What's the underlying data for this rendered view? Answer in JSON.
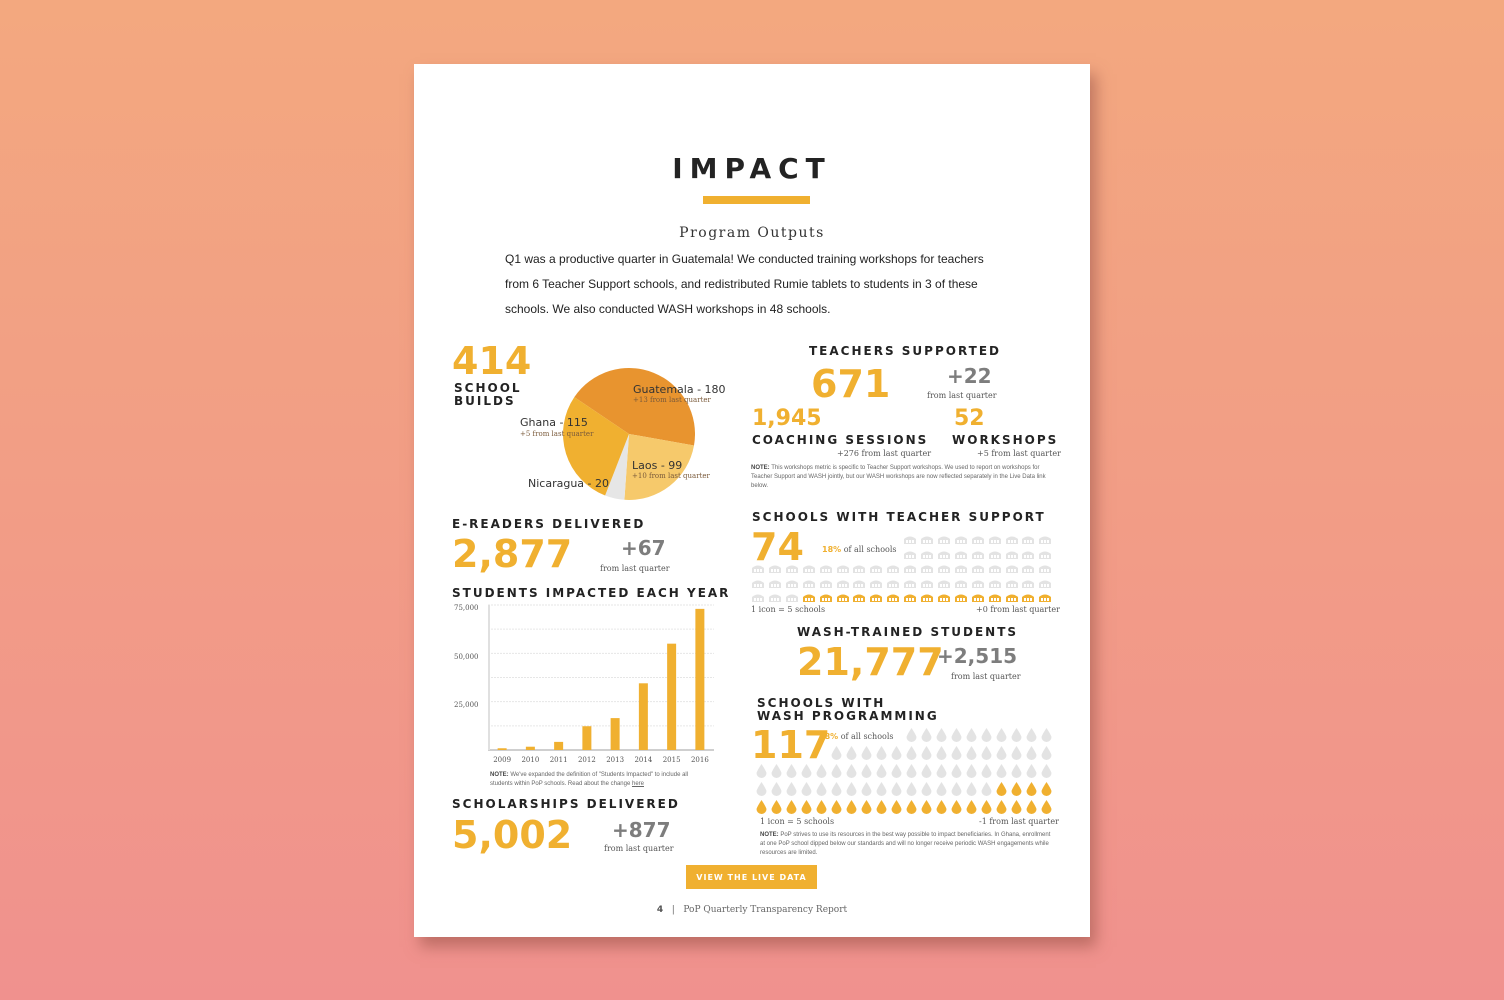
{
  "page": {
    "title": "IMPACT",
    "subtitle": "Program Outputs",
    "intro": "Q1 was a productive quarter in Guatemala! We conducted training workshops for teachers from 6 Teacher Support schools, and redistributed Rumie tablets to students in 3 of these schools. We also conducted WASH workshops in 48 schools.",
    "accent_color": "#f0b030"
  },
  "school_builds": {
    "value": "414",
    "label_line1": "SCHOOL",
    "label_line2": "BUILDS",
    "slices": [
      {
        "name": "Guatemala - 180",
        "value": 180,
        "delta": "+13 from last quarter",
        "color": "#e8942f"
      },
      {
        "name": "Laos - 99",
        "value": 99,
        "delta": "+10 from last quarter",
        "color": "#f6c96b"
      },
      {
        "name": "Nicaragua - 20",
        "value": 20,
        "delta": "",
        "color": "#e6e6e6"
      },
      {
        "name": "Ghana - 115",
        "value": 115,
        "delta": "+5 from last quarter",
        "color": "#f0b030"
      }
    ]
  },
  "teachers_supported": {
    "label": "TEACHERS SUPPORTED",
    "value": "671",
    "delta": "+22",
    "delta_label": "from last quarter",
    "coaching": {
      "value": "1,945",
      "label": "COACHING SESSIONS",
      "delta": "+276 from last quarter"
    },
    "workshops": {
      "value": "52",
      "label": "WORKSHOPS",
      "delta": "+5 from last quarter"
    },
    "note_label": "NOTE:",
    "note": "This workshops metric is specific to Teacher Support workshops. We used to report on workshops for Teacher Support and WASH jointly, but our WASH workshops are now reflected separately in the Live Data link below."
  },
  "ereaders": {
    "label": "E-READERS DELIVERED",
    "value": "2,877",
    "delta": "+67",
    "delta_label": "from last quarter"
  },
  "students_chart": {
    "label": "STUDENTS IMPACTED EACH YEAR",
    "note_label": "NOTE:",
    "note_text": "We've expanded the definition of \"Students Impacted\" to include all students within PoP schools. Read about the change ",
    "note_link": "here"
  },
  "chart_data": {
    "type": "bar",
    "title": "STUDENTS IMPACTED EACH YEAR",
    "categories": [
      "2009",
      "2010",
      "2011",
      "2012",
      "2013",
      "2014",
      "2015",
      "2016"
    ],
    "values": [
      900,
      1700,
      4200,
      12300,
      16500,
      34500,
      55000,
      73000
    ],
    "xlabel": "",
    "ylabel": "",
    "ylim": [
      0,
      75000
    ],
    "yticks": [
      "75,000",
      "50,000",
      "25,000"
    ],
    "grid": true,
    "color": "#f0b030"
  },
  "scholarships": {
    "label": "SCHOLARSHIPS DELIVERED",
    "value": "5,002",
    "delta": "+877",
    "delta_label": "from last quarter"
  },
  "teacher_support_schools": {
    "label": "SCHOOLS WITH TEACHER SUPPORT",
    "value": "74",
    "pct": "18%",
    "pct_label": "of all schools",
    "legend": "1 icon = 5 schools",
    "delta": "+0 from last quarter",
    "icon": "school-icon"
  },
  "wash_students": {
    "label": "WASH-TRAINED STUDENTS",
    "value": "21,777",
    "delta": "+2,515",
    "delta_label": "from last quarter"
  },
  "wash_schools": {
    "label_line1": "SCHOOLS WITH",
    "label_line2": "WASH PROGRAMMING",
    "value": "117",
    "pct": "28%",
    "pct_label": "of all schools",
    "legend": "1 icon = 5 schools",
    "delta": "-1 from last quarter",
    "icon": "water-drop-icon",
    "note_label": "NOTE:",
    "note": "PoP strives to use its resources in the best way possible to impact beneficiaries. In Ghana, enrollment at one PoP school dipped below our standards and will no longer receive periodic WASH engagements while resources are limited."
  },
  "cta": {
    "label": "VIEW THE LIVE DATA"
  },
  "footer": {
    "page_number": "4",
    "separator": "|",
    "text": "PoP Quarterly Transparency Report"
  }
}
